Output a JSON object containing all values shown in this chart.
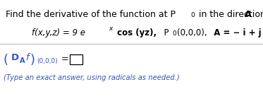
{
  "bg_color": "#ffffff",
  "text_color": "#000000",
  "blue_color": "#3355bb",
  "line1_normal": "Find the derivative of the function at P",
  "line1_sub": "0",
  "line1_end": " in the direction of  A.",
  "formula_prefix": "f(x,y,z) = 9 e",
  "formula_sup": "x",
  "formula_cos": " cos (yz),",
  "formula_P": "  P",
  "formula_P_sub": "0",
  "formula_P_rest": "(0,0,0),",
  "formula_A": "   A = − i + j + k",
  "ans_open": "(",
  "ans_D": "D",
  "ans_Asub": "A",
  "ans_f": "f",
  "ans_close": ")",
  "ans_coords": "(0,0,0)",
  "ans_eq": " =",
  "note": "(Type an exact answer, using radicals as needed.)"
}
